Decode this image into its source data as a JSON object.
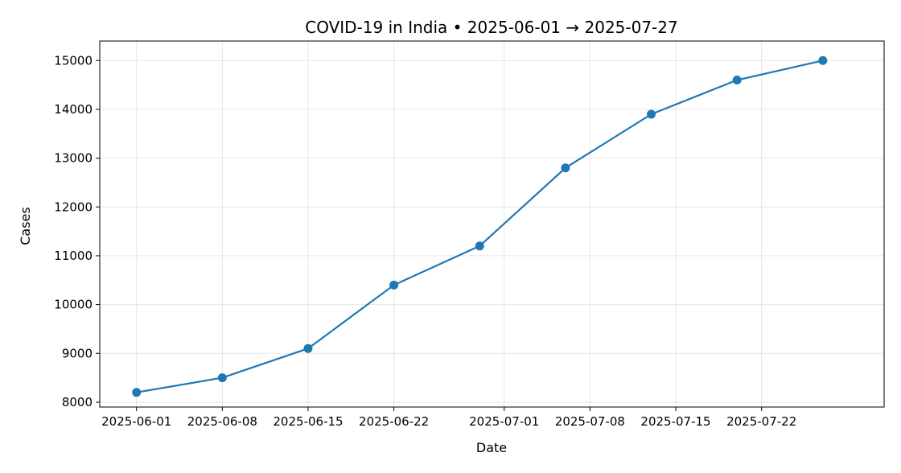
{
  "chart_data": {
    "type": "line",
    "title": "COVID-19 in India • 2025-06-01 → 2025-07-27",
    "xlabel": "Date",
    "ylabel": "Cases",
    "x_range": [
      "2025-05-29",
      "2025-08-01"
    ],
    "ylim": [
      7900,
      15400
    ],
    "x_ticks": [
      "2025-06-01",
      "2025-06-08",
      "2025-06-15",
      "2025-06-22",
      "2025-07-01",
      "2025-07-08",
      "2025-07-15",
      "2025-07-22"
    ],
    "y_ticks": [
      8000,
      9000,
      10000,
      11000,
      12000,
      13000,
      14000,
      15000
    ],
    "grid": true,
    "series": [
      {
        "color": "#1f77b4",
        "marker": "circle",
        "x": [
          "2025-06-01",
          "2025-06-08",
          "2025-06-15",
          "2025-06-22",
          "2025-06-29",
          "2025-07-06",
          "2025-07-13",
          "2025-07-20",
          "2025-07-27"
        ],
        "y": [
          8200,
          8500,
          9100,
          10400,
          11200,
          12800,
          13900,
          14600,
          15000
        ]
      }
    ]
  }
}
